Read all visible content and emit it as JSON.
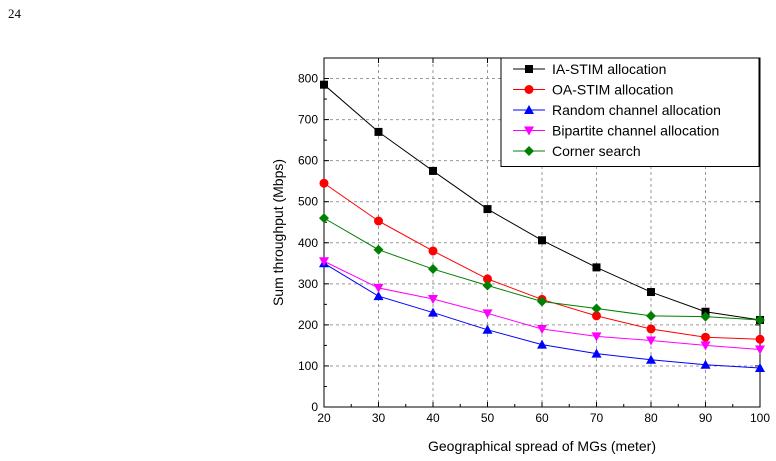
{
  "page": {
    "number": "24"
  },
  "chart_data": {
    "type": "line",
    "title": "",
    "xlabel": "Geographical spread of MGs (meter)",
    "ylabel": "Sum throughput (Mbps)",
    "x": [
      20,
      30,
      40,
      50,
      60,
      70,
      80,
      90,
      100
    ],
    "xlim": [
      20,
      100
    ],
    "ylim": [
      0,
      850
    ],
    "xticks": [
      20,
      30,
      40,
      50,
      60,
      70,
      80,
      90,
      100
    ],
    "yticks": [
      0,
      100,
      200,
      300,
      400,
      500,
      600,
      700,
      800
    ],
    "grid": true,
    "legend_position": "top-right",
    "series": [
      {
        "name": "IA-STIM allocation",
        "color": "#000000",
        "marker": "square",
        "values": [
          785,
          670,
          575,
          482,
          406,
          340,
          280,
          232,
          212
        ]
      },
      {
        "name": "OA-STIM allocation",
        "color": "#ff0000",
        "marker": "circle",
        "values": [
          545,
          453,
          380,
          312,
          262,
          222,
          190,
          170,
          165
        ]
      },
      {
        "name": "Random channel allocation",
        "color": "#0000ff",
        "marker": "triangle-up",
        "values": [
          350,
          270,
          230,
          188,
          152,
          130,
          115,
          103,
          95
        ]
      },
      {
        "name": "Bipartite channel allocation",
        "color": "#ff00ff",
        "marker": "triangle-down",
        "values": [
          355,
          290,
          263,
          228,
          190,
          172,
          162,
          150,
          140
        ]
      },
      {
        "name": "Corner search",
        "color": "#008000",
        "marker": "diamond",
        "values": [
          460,
          383,
          336,
          296,
          257,
          240,
          222,
          220,
          212
        ]
      }
    ]
  }
}
